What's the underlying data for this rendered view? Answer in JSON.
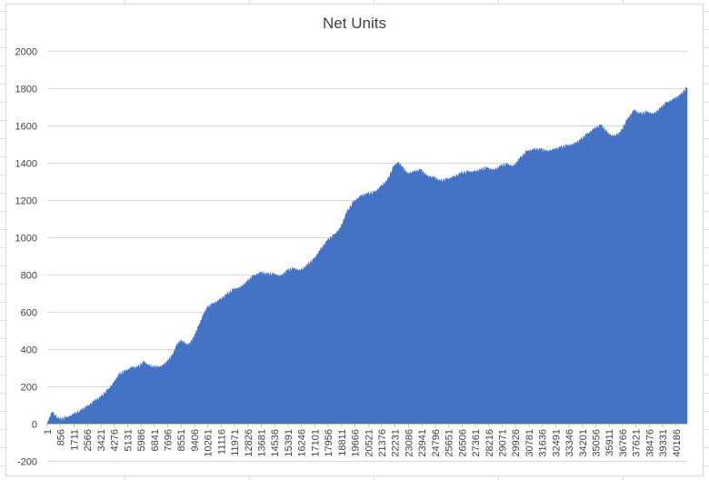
{
  "chart_data": {
    "type": "area",
    "title": "Net Units",
    "xlabel": "",
    "ylabel": "",
    "ylim": [
      -200,
      2000
    ],
    "yticks": [
      -200,
      0,
      200,
      400,
      600,
      800,
      1000,
      1200,
      1400,
      1600,
      1800,
      2000
    ],
    "xlim": [
      1,
      41041
    ],
    "xticks": [
      1,
      856,
      1711,
      2566,
      3421,
      4276,
      5131,
      5986,
      6841,
      7696,
      8551,
      9406,
      10261,
      11116,
      11971,
      12826,
      13681,
      14536,
      15391,
      16246,
      17101,
      17956,
      18811,
      19666,
      20521,
      21376,
      22231,
      23086,
      23941,
      24796,
      25651,
      26506,
      27361,
      28216,
      29071,
      29926,
      30781,
      31636,
      32491,
      33346,
      34201,
      35056,
      35911,
      36766,
      37621,
      38476,
      39331,
      40186
    ],
    "grid": true,
    "legend": "none",
    "color": "#4472c4",
    "series": [
      {
        "x": [
          1,
          300,
          800,
          1200,
          1700,
          2200,
          2566,
          3000,
          3421,
          3900,
          4276,
          4600,
          5000,
          5400,
          5800,
          6200,
          6500,
          6841,
          7100,
          7400,
          7696,
          8000,
          8300,
          8551,
          8800,
          9050,
          9406,
          9700,
          10000,
          10261,
          10600,
          11000,
          11500,
          11971,
          12400,
          12826,
          13200,
          13681,
          14100,
          14536,
          15000,
          15391,
          15800,
          16246,
          16700,
          17101,
          17500,
          17956,
          18400,
          18811,
          19200,
          19666,
          20100,
          20521,
          21000,
          21376,
          21800,
          22231,
          22500,
          22800,
          23086,
          23500,
          23941,
          24300,
          24796,
          25200,
          25651,
          26000,
          26506,
          27000,
          27361,
          27800,
          28216,
          28700,
          29071,
          29500,
          29926,
          30300,
          30781,
          31200,
          31636,
          32000,
          32491,
          32900,
          33346,
          33800,
          34201,
          34600,
          35056,
          35500,
          35911,
          36300,
          36766,
          37200,
          37621,
          38000,
          38476,
          38900,
          39331,
          39700,
          40186,
          40600,
          41041
        ],
        "values": [
          0,
          60,
          20,
          30,
          50,
          70,
          90,
          120,
          140,
          180,
          220,
          260,
          280,
          300,
          300,
          330,
          310,
          300,
          300,
          310,
          330,
          360,
          420,
          440,
          430,
          420,
          460,
          520,
          580,
          620,
          640,
          660,
          690,
          720,
          730,
          760,
          790,
          810,
          800,
          800,
          790,
          820,
          830,
          820,
          850,
          880,
          930,
          980,
          1010,
          1050,
          1130,
          1190,
          1220,
          1230,
          1240,
          1270,
          1300,
          1380,
          1400,
          1370,
          1340,
          1350,
          1360,
          1330,
          1320,
          1300,
          1310,
          1320,
          1340,
          1350,
          1350,
          1360,
          1370,
          1360,
          1380,
          1390,
          1380,
          1420,
          1460,
          1470,
          1470,
          1460,
          1470,
          1480,
          1490,
          1500,
          1520,
          1550,
          1580,
          1600,
          1560,
          1540,
          1560,
          1630,
          1680,
          1660,
          1670,
          1660,
          1690,
          1720,
          1740,
          1760,
          1800
        ]
      }
    ]
  }
}
